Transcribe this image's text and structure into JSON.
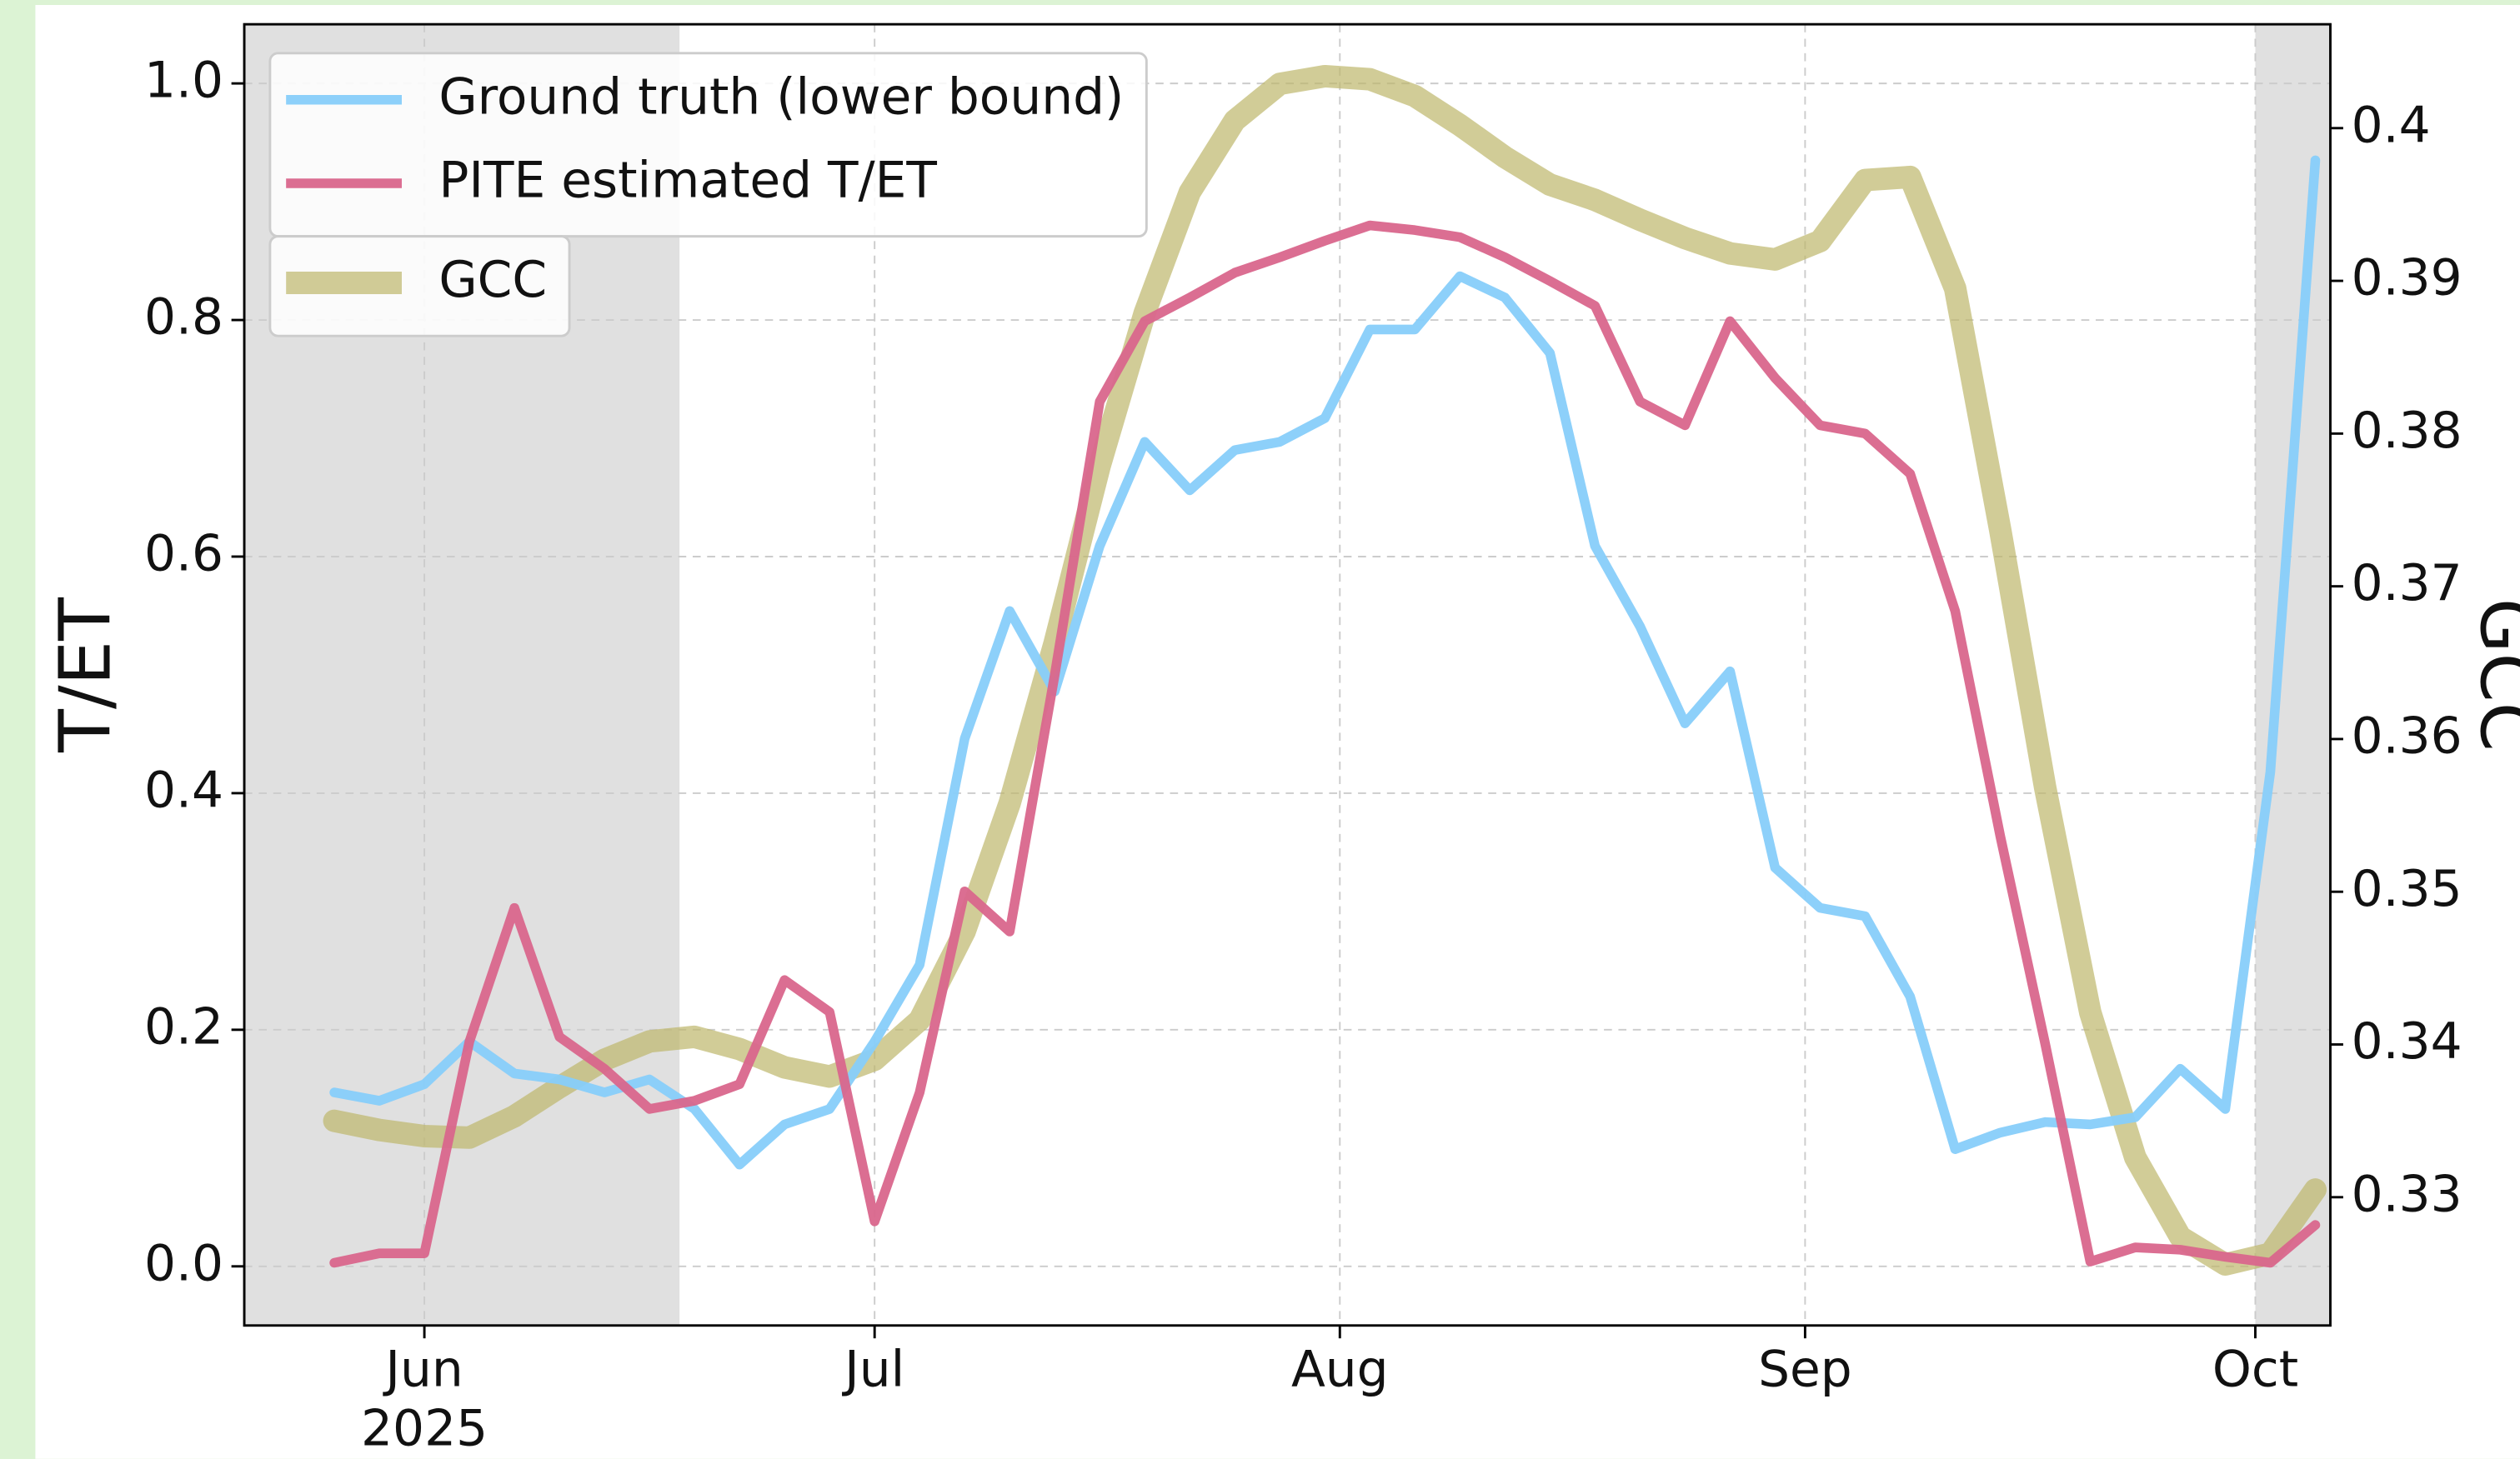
{
  "chart_data": {
    "type": "line",
    "x": [
      "2025-05-26",
      "2025-05-29",
      "2025-06-01",
      "2025-06-04",
      "2025-06-07",
      "2025-06-10",
      "2025-06-13",
      "2025-06-16",
      "2025-06-19",
      "2025-06-22",
      "2025-06-25",
      "2025-06-28",
      "2025-07-01",
      "2025-07-04",
      "2025-07-07",
      "2025-07-10",
      "2025-07-13",
      "2025-07-16",
      "2025-07-19",
      "2025-07-22",
      "2025-07-25",
      "2025-07-28",
      "2025-07-31",
      "2025-08-03",
      "2025-08-06",
      "2025-08-09",
      "2025-08-12",
      "2025-08-15",
      "2025-08-18",
      "2025-08-21",
      "2025-08-24",
      "2025-08-27",
      "2025-08-30",
      "2025-09-02",
      "2025-09-05",
      "2025-09-08",
      "2025-09-11",
      "2025-09-14",
      "2025-09-17",
      "2025-09-20",
      "2025-09-23",
      "2025-09-26",
      "2025-09-29",
      "2025-10-02",
      "2025-10-05"
    ],
    "series": [
      {
        "name": "Ground truth (lower bound)",
        "color": "#87cefa",
        "axis": "y",
        "values": [
          0.147,
          0.14,
          0.154,
          0.19,
          0.163,
          0.158,
          0.147,
          0.158,
          0.133,
          0.086,
          0.12,
          0.133,
          0.19,
          0.255,
          0.446,
          0.554,
          0.486,
          0.609,
          0.697,
          0.656,
          0.69,
          0.697,
          0.717,
          0.792,
          0.792,
          0.837,
          0.819,
          0.772,
          0.609,
          0.541,
          0.459,
          0.503,
          0.337,
          0.303,
          0.296,
          0.228,
          0.099,
          0.113,
          0.122,
          0.12,
          0.126,
          0.167,
          0.133,
          0.418,
          0.935
        ]
      },
      {
        "name": "PITE estimated T/ET",
        "color": "#d9668c",
        "axis": "y",
        "values": [
          0.003,
          0.011,
          0.011,
          0.19,
          0.303,
          0.194,
          0.167,
          0.133,
          0.14,
          0.154,
          0.242,
          0.215,
          0.038,
          0.147,
          0.317,
          0.283,
          0.5,
          0.731,
          0.799,
          0.819,
          0.84,
          0.853,
          0.867,
          0.88,
          0.876,
          0.87,
          0.853,
          0.833,
          0.812,
          0.731,
          0.711,
          0.799,
          0.751,
          0.711,
          0.704,
          0.67,
          0.554,
          0.364,
          0.188,
          0.004,
          0.016,
          0.014,
          0.008,
          0.003,
          0.035
        ]
      },
      {
        "name": "GCC",
        "color": "#bdb76b",
        "axis": "y2",
        "values": [
          0.335,
          0.3344,
          0.334,
          0.3339,
          0.3353,
          0.3372,
          0.339,
          0.3402,
          0.3405,
          0.3397,
          0.3385,
          0.3379,
          0.339,
          0.3416,
          0.3474,
          0.3558,
          0.3663,
          0.3779,
          0.3879,
          0.3958,
          0.4005,
          0.4029,
          0.4034,
          0.4032,
          0.4021,
          0.4002,
          0.3981,
          0.3963,
          0.3953,
          0.394,
          0.3928,
          0.3918,
          0.3914,
          0.3926,
          0.3966,
          0.3968,
          0.3895,
          0.3737,
          0.3568,
          0.3421,
          0.3326,
          0.3274,
          0.3256,
          0.3263,
          0.3305
        ]
      }
    ],
    "ylabel": "T/ET",
    "y2label": "GCC",
    "xlim": [
      "2025-05-20",
      "2025-10-06"
    ],
    "xticks": [
      {
        "value": "2025-06-01",
        "label": "Jun"
      },
      {
        "value": "2025-07-01",
        "label": "Jul"
      },
      {
        "value": "2025-08-01",
        "label": "Aug"
      },
      {
        "value": "2025-09-01",
        "label": "Sep"
      },
      {
        "value": "2025-10-01",
        "label": "Oct"
      }
    ],
    "year_label": "2025",
    "ylim": [
      -0.05,
      1.05
    ],
    "yticks": [
      {
        "value": 0,
        "label": "0.0"
      },
      0.2,
      0.4,
      0.6,
      0.8,
      {
        "value": 1,
        "label": "1.0"
      }
    ],
    "y2lim": [
      0.3216,
      0.4068
    ],
    "y2ticks": [
      0.33,
      0.34,
      0.35,
      0.36,
      0.37,
      0.38,
      0.39,
      0.4
    ],
    "shaded_spans": [
      [
        "2025-05-20",
        "2025-06-18"
      ],
      [
        "2025-10-01",
        "2025-10-06"
      ]
    ],
    "grid": true,
    "legend": "upper left"
  }
}
